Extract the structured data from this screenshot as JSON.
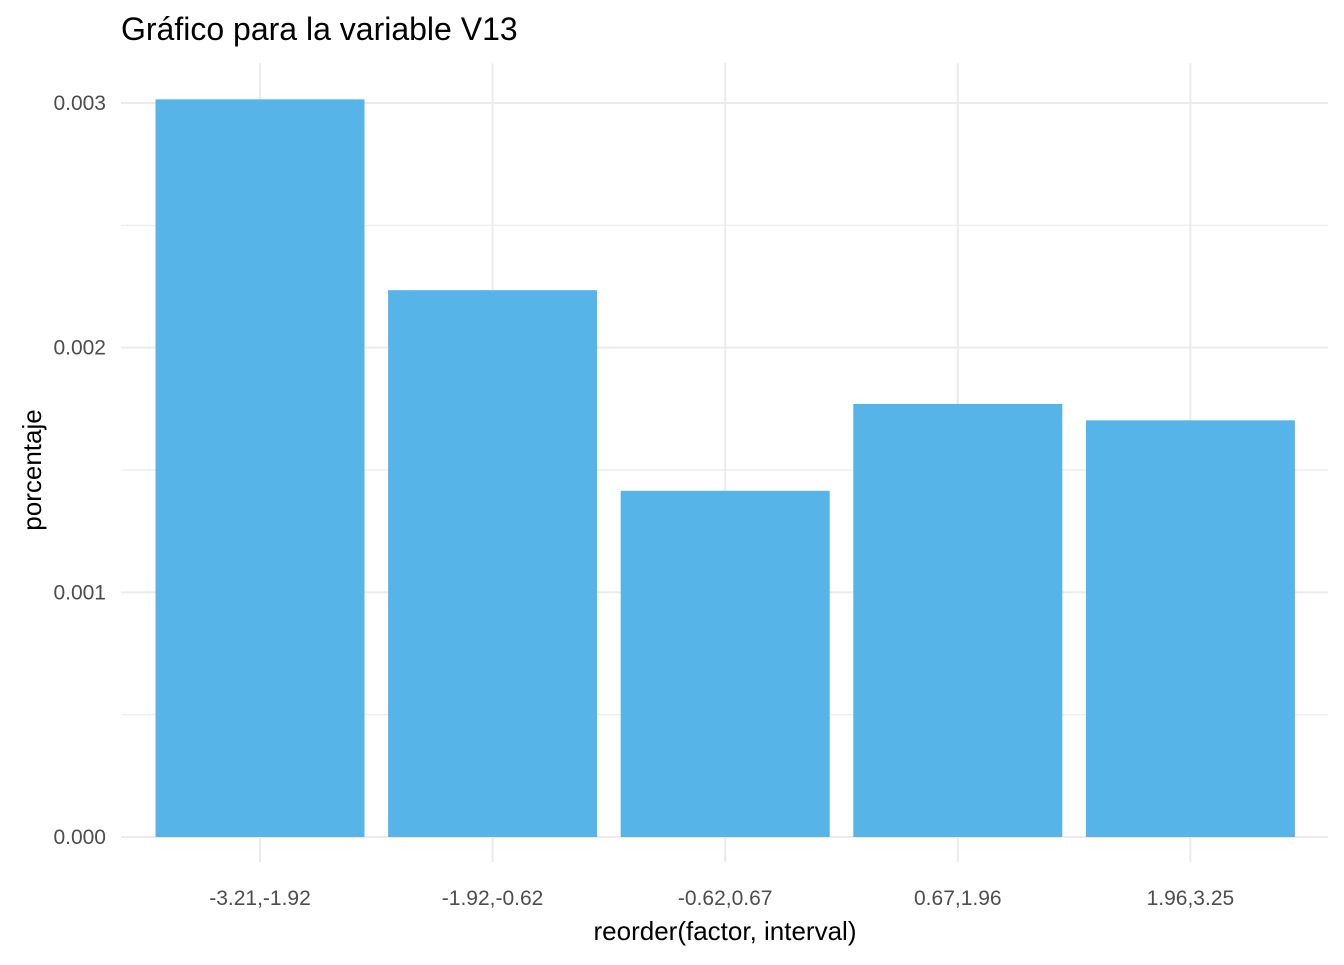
{
  "chart_data": {
    "type": "bar",
    "title": "Gráfico para la variable  V13",
    "xlabel": "reorder(factor, interval)",
    "ylabel": "porcentaje",
    "categories": [
      "-3.21,-1.92",
      "-1.92,-0.62",
      "-0.62,0.67",
      "0.67,1.96",
      "1.96,3.25"
    ],
    "values": [
      0.003015,
      0.002235,
      0.001415,
      0.00177,
      0.001703
    ],
    "ylim": [
      0,
      0.00317
    ],
    "yticks": [
      "0.000",
      "0.001",
      "0.002",
      "0.003"
    ],
    "ytick_values": [
      0,
      0.001,
      0.002,
      0.003
    ],
    "grid": true,
    "bar_color": "#56B4E9",
    "grid_color": "#EBEBEB"
  }
}
